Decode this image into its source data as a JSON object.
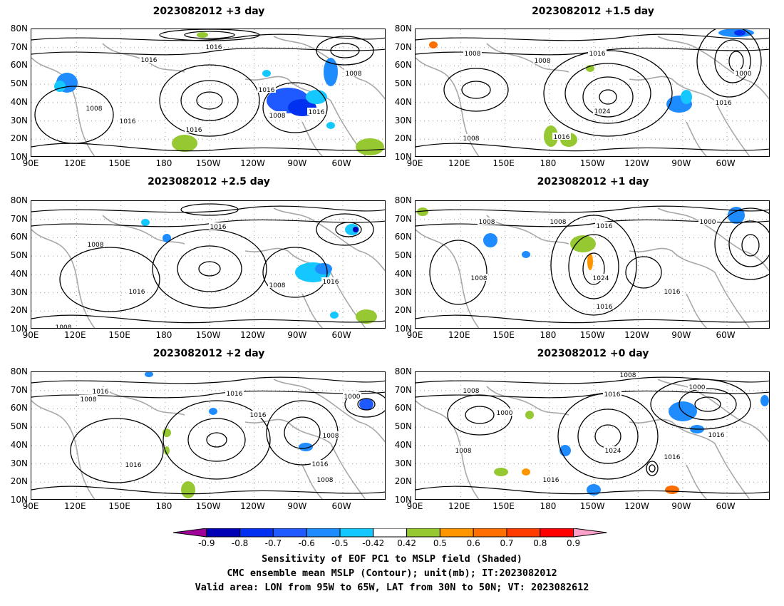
{
  "panels": [
    {
      "title": "2023082012 +3 day",
      "contour_labels": [
        "1016",
        "1016",
        "1008",
        "1016",
        "1016",
        "1016",
        "1008",
        "1016",
        "1008"
      ]
    },
    {
      "title": "2023082012 +1.5 day",
      "contour_labels": [
        "1008",
        "1016",
        "1008",
        "1024",
        "1016",
        "1008",
        "1016",
        "1000"
      ]
    },
    {
      "title": "2023082012 +2.5 day",
      "contour_labels": [
        "1008",
        "1016",
        "1016",
        "1008",
        "1016",
        "1008"
      ]
    },
    {
      "title": "2023082012 +1 day",
      "contour_labels": [
        "1008",
        "1008",
        "1016",
        "1008",
        "1024",
        "1016",
        "1016",
        "1000"
      ]
    },
    {
      "title": "2023082012 +2 day",
      "contour_labels": [
        "1016",
        "1008",
        "1016",
        "1016",
        "1016",
        "1016",
        "1008",
        "1000",
        "1008"
      ]
    },
    {
      "title": "2023082012 +0 day",
      "contour_labels": [
        "1008",
        "1008",
        "1016",
        "1000",
        "1008",
        "1024",
        "1016",
        "1016",
        "1016",
        "1000"
      ]
    }
  ],
  "lat_labels": [
    "80N",
    "70N",
    "60N",
    "50N",
    "40N",
    "30N",
    "20N",
    "10N"
  ],
  "lon_labels": [
    "90E",
    "120E",
    "150E",
    "180",
    "150W",
    "120W",
    "90W",
    "60W"
  ],
  "colorbar": {
    "ticks": [
      "-0.9",
      "-0.8",
      "-0.7",
      "-0.6",
      "-0.5",
      "-0.42",
      "0.42",
      "0.5",
      "0.6",
      "0.7",
      "0.8",
      "0.9"
    ],
    "colors": [
      "#a0009a",
      "#0000b4",
      "#0030f0",
      "#1e5aff",
      "#1e8cff",
      "#14c8ff",
      "#ffffff",
      "#96c832",
      "#ff9600",
      "#ff6e00",
      "#ff3c00",
      "#ff0000",
      "#ffa0c8"
    ]
  },
  "caption": {
    "line1": "Sensitivity of EOF PC1 to MSLP field (Shaded)",
    "line2": "CMC ensemble mean MSLP (Contour); unit(mb); IT:2023082012",
    "line3": "Valid area: LON from 95W to 65W, LAT from 30N to 50N; VT: 2023082612"
  }
}
